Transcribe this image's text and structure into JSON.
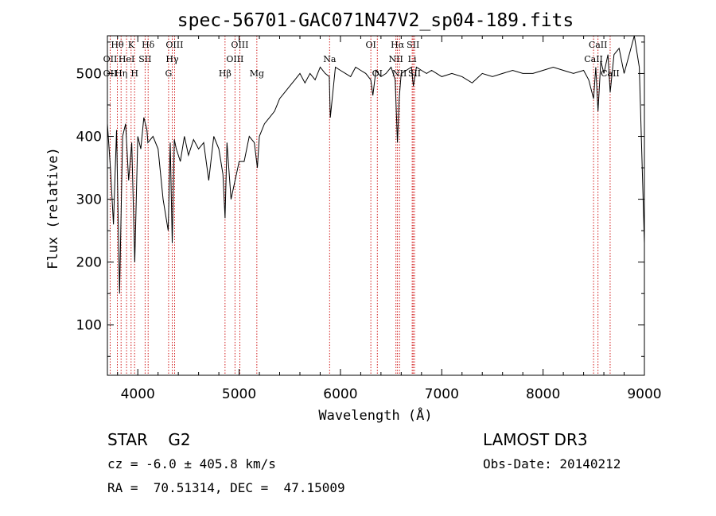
{
  "chart_data": {
    "type": "line",
    "title": "spec-56701-GAC071N47V2_sp04-189.fits",
    "xlabel": "Wavelength (Å)",
    "ylabel": "Flux (relative)",
    "xlim": [
      3700,
      9000
    ],
    "ylim": [
      20,
      560
    ],
    "xticks": [
      4000,
      5000,
      6000,
      7000,
      8000,
      9000
    ],
    "yticks": [
      100,
      200,
      300,
      400,
      500
    ],
    "series": [
      {
        "name": "flux",
        "x": [
          3700,
          3730,
          3760,
          3790,
          3820,
          3850,
          3880,
          3910,
          3940,
          3970,
          4000,
          4030,
          4060,
          4090,
          4100,
          4150,
          4200,
          4250,
          4300,
          4320,
          4340,
          4360,
          4380,
          4420,
          4460,
          4500,
          4550,
          4600,
          4650,
          4700,
          4750,
          4800,
          4840,
          4861,
          4880,
          4920,
          4960,
          5000,
          5050,
          5100,
          5150,
          5180,
          5200,
          5250,
          5300,
          5350,
          5400,
          5450,
          5500,
          5550,
          5600,
          5650,
          5700,
          5750,
          5800,
          5850,
          5890,
          5900,
          5950,
          6000,
          6050,
          6100,
          6150,
          6200,
          6250,
          6300,
          6320,
          6350,
          6400,
          6450,
          6500,
          6540,
          6563,
          6580,
          6600,
          6650,
          6700,
          6720,
          6750,
          6800,
          6850,
          6900,
          6950,
          7000,
          7100,
          7200,
          7300,
          7400,
          7500,
          7600,
          7700,
          7800,
          7900,
          8000,
          8100,
          8200,
          8300,
          8400,
          8450,
          8498,
          8520,
          8542,
          8570,
          8600,
          8640,
          8662,
          8700,
          8750,
          8800,
          8850,
          8900,
          8950,
          9000
        ],
        "y": [
          420,
          350,
          260,
          410,
          150,
          400,
          420,
          330,
          390,
          200,
          400,
          380,
          430,
          410,
          390,
          400,
          380,
          300,
          250,
          390,
          230,
          395,
          380,
          360,
          400,
          370,
          395,
          380,
          390,
          330,
          400,
          380,
          340,
          270,
          390,
          300,
          330,
          360,
          360,
          400,
          390,
          350,
          400,
          420,
          430,
          440,
          460,
          470,
          480,
          490,
          500,
          485,
          500,
          490,
          510,
          500,
          495,
          430,
          510,
          505,
          500,
          495,
          510,
          505,
          500,
          490,
          465,
          505,
          495,
          500,
          510,
          490,
          390,
          460,
          500,
          505,
          510,
          480,
          510,
          505,
          500,
          505,
          500,
          495,
          500,
          495,
          485,
          500,
          495,
          500,
          505,
          500,
          500,
          505,
          510,
          505,
          500,
          505,
          490,
          460,
          510,
          440,
          520,
          500,
          530,
          470,
          530,
          540,
          500,
          530,
          560,
          510,
          230
        ]
      }
    ],
    "annotations": {
      "header": "STAR    G2",
      "survey": "LAMOST DR3",
      "cz": "cz = -6.0 ± 405.8 km/s",
      "obs_date": "Obs-Date: 20140212",
      "radec": "RA =  70.51314, DEC =  47.15009"
    },
    "lines": [
      {
        "label": "OII",
        "x": 3727,
        "row": 2
      },
      {
        "label": "OII",
        "x": 3727,
        "row": 3
      },
      {
        "label": "Hθ",
        "x": 3798,
        "row": 1
      },
      {
        "label": "Hη",
        "x": 3835,
        "row": 3
      },
      {
        "label": "K",
        "x": 3934,
        "row": 1
      },
      {
        "label": "HeI",
        "x": 3889,
        "row": 2
      },
      {
        "label": "H",
        "x": 3968,
        "row": 3
      },
      {
        "label": "SII",
        "x": 4072,
        "row": 2
      },
      {
        "label": "Hδ",
        "x": 4102,
        "row": 1
      },
      {
        "label": "OIII",
        "x": 4363,
        "row": 1
      },
      {
        "label": "Hγ",
        "x": 4340,
        "row": 2
      },
      {
        "label": "G",
        "x": 4304,
        "row": 3
      },
      {
        "label": "OIII",
        "x": 5007,
        "row": 1
      },
      {
        "label": "OIII",
        "x": 4959,
        "row": 2
      },
      {
        "label": "Hβ",
        "x": 4861,
        "row": 3
      },
      {
        "label": "Mg",
        "x": 5175,
        "row": 3
      },
      {
        "label": "Na",
        "x": 5893,
        "row": 2
      },
      {
        "label": "OI",
        "x": 6300,
        "row": 1
      },
      {
        "label": "OI",
        "x": 6364,
        "row": 3
      },
      {
        "label": "Hα",
        "x": 6563,
        "row": 1
      },
      {
        "label": "NII",
        "x": 6548,
        "row": 2
      },
      {
        "label": "NII",
        "x": 6583,
        "row": 3
      },
      {
        "label": "SII",
        "x": 6717,
        "row": 1
      },
      {
        "label": "Li",
        "x": 6708,
        "row": 2
      },
      {
        "label": "SII",
        "x": 6731,
        "row": 3
      },
      {
        "label": "CaII",
        "x": 8542,
        "row": 1
      },
      {
        "label": "CaII",
        "x": 8498,
        "row": 2
      },
      {
        "label": "CaII",
        "x": 8662,
        "row": 3
      }
    ],
    "colors": {
      "line": "#000000",
      "marker": "#cc0000"
    }
  }
}
